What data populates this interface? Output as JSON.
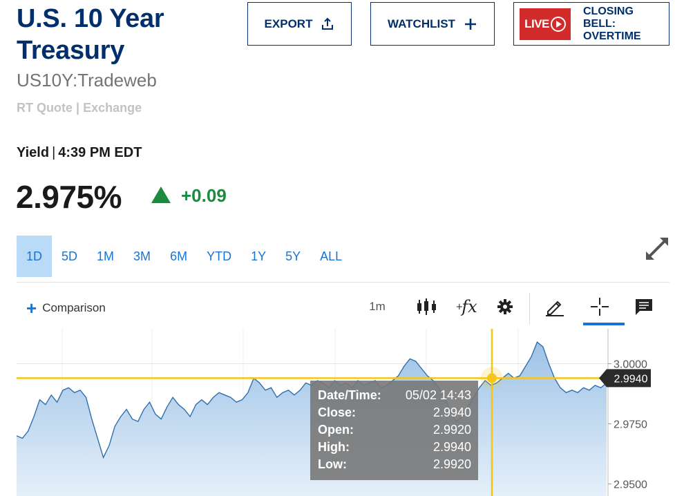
{
  "header": {
    "title": "U.S. 10 Year Treasury",
    "symbol": "US10Y:Tradeweb",
    "quote_type": "RT Quote",
    "quote_sep": "|",
    "exchange": "Exchange"
  },
  "buttons": {
    "export": "EXPORT",
    "watchlist": "WATCHLIST",
    "live_badge": "LIVE",
    "live_show": "CLOSING BELL: OVERTIME"
  },
  "quote": {
    "label": "Yield",
    "sep": "|",
    "time": "4:39 PM EDT",
    "last": "2.975%",
    "change": "+0.09",
    "change_color": "#1c8a3f"
  },
  "ranges": [
    "1D",
    "5D",
    "1M",
    "3M",
    "6M",
    "YTD",
    "1Y",
    "5Y",
    "ALL"
  ],
  "active_range": "1D",
  "toolbar": {
    "comparison": "Comparison",
    "interval": "1m",
    "fx_label": "fx",
    "icons": [
      "candlestick-icon",
      "studies-fx-icon",
      "gear-icon",
      "pencil-icon",
      "crosshair-icon",
      "comment-icon"
    ]
  },
  "chart_data": {
    "type": "area",
    "y_ticks": [
      "3.0000",
      "2.9750",
      "2.9500"
    ],
    "ylim": [
      2.945,
      3.0145
    ],
    "current_value": "2.9940",
    "crosshair_value": 2.994,
    "line_color": "#2f6fae",
    "crosshair_color": "#f5c518",
    "values": [
      2.97,
      2.969,
      2.972,
      2.978,
      2.985,
      2.983,
      2.987,
      2.984,
      2.989,
      2.99,
      2.988,
      2.989,
      2.986,
      2.977,
      2.969,
      2.961,
      2.966,
      2.974,
      2.978,
      2.981,
      2.977,
      2.976,
      2.981,
      2.984,
      2.979,
      2.977,
      2.982,
      2.986,
      2.983,
      2.981,
      2.978,
      2.983,
      2.985,
      2.983,
      2.986,
      2.988,
      2.987,
      2.986,
      2.984,
      2.985,
      2.988,
      2.994,
      2.992,
      2.989,
      2.99,
      2.986,
      2.988,
      2.989,
      2.987,
      2.989,
      2.992,
      2.991,
      2.993,
      2.992,
      2.99,
      2.993,
      2.991,
      2.992,
      2.99,
      2.993,
      2.991,
      2.992,
      2.993,
      2.99,
      2.991,
      2.993,
      2.995,
      2.999,
      3.002,
      3.001,
      2.998,
      2.995,
      2.993,
      2.99,
      2.986,
      2.98,
      2.976,
      2.978,
      2.982,
      2.986,
      2.99,
      2.993,
      2.991,
      2.992,
      2.994,
      2.996,
      2.994,
      2.995,
      2.999,
      3.003,
      3.009,
      3.007,
      3.0,
      2.994,
      2.99,
      2.988,
      2.989,
      2.988,
      2.99,
      2.989,
      2.991,
      2.99,
      2.992
    ]
  },
  "tooltip": {
    "rows": [
      {
        "k": "Date/Time:",
        "v": "05/02 14:43"
      },
      {
        "k": "Close:",
        "v": "2.9940"
      },
      {
        "k": "Open:",
        "v": "2.9920"
      },
      {
        "k": "High:",
        "v": "2.9940"
      },
      {
        "k": "Low:",
        "v": "2.9920"
      }
    ]
  }
}
